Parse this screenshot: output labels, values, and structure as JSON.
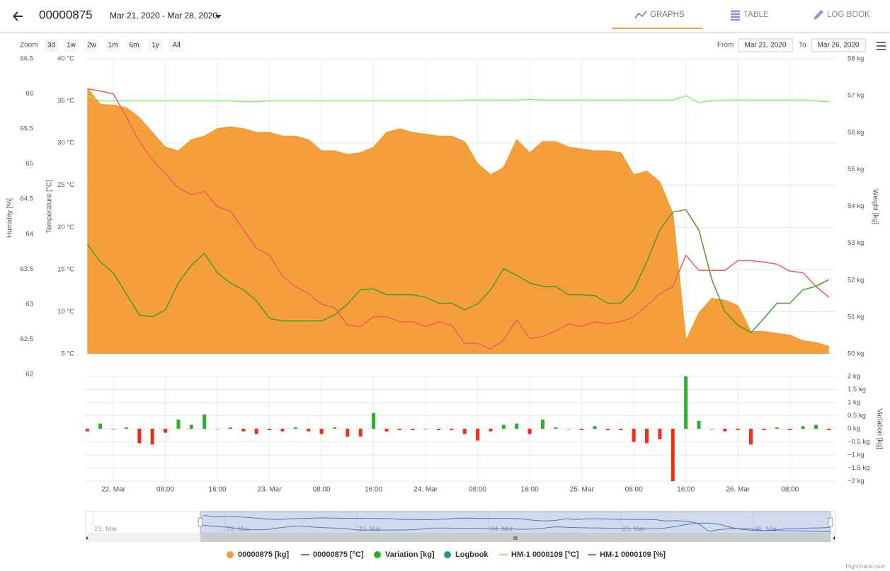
{
  "header": {
    "title": "00000875",
    "date_range": "Mar 21, 2020 - Mar 28, 2020",
    "tabs": [
      "GRAPHS",
      "TABLE",
      "LOG BOOK"
    ]
  },
  "toolbar": {
    "zoom_label": "Zoom",
    "zoom_buttons": [
      "3d",
      "1w",
      "2w",
      "1m",
      "6m",
      "1y",
      "All"
    ],
    "from_label": "From",
    "from_value": "Mar 21, 2020",
    "to_label": "To",
    "to_value": "Mar 26, 2020"
  },
  "chart_data": {
    "type": "line",
    "x": [
      "2020-03-21T20:00",
      "2020-03-21T22:00",
      "2020-03-22T00:00",
      "2020-03-22T02:00",
      "2020-03-22T04:00",
      "2020-03-22T06:00",
      "2020-03-22T08:00",
      "2020-03-22T10:00",
      "2020-03-22T12:00",
      "2020-03-22T14:00",
      "2020-03-22T16:00",
      "2020-03-22T18:00",
      "2020-03-22T20:00",
      "2020-03-22T22:00",
      "2020-03-23T00:00",
      "2020-03-23T02:00",
      "2020-03-23T04:00",
      "2020-03-23T06:00",
      "2020-03-23T08:00",
      "2020-03-23T10:00",
      "2020-03-23T12:00",
      "2020-03-23T14:00",
      "2020-03-23T16:00",
      "2020-03-23T18:00",
      "2020-03-23T20:00",
      "2020-03-23T22:00",
      "2020-03-24T00:00",
      "2020-03-24T02:00",
      "2020-03-24T04:00",
      "2020-03-24T06:00",
      "2020-03-24T08:00",
      "2020-03-24T10:00",
      "2020-03-24T12:00",
      "2020-03-24T14:00",
      "2020-03-24T16:00",
      "2020-03-24T18:00",
      "2020-03-24T20:00",
      "2020-03-24T22:00",
      "2020-03-25T00:00",
      "2020-03-25T02:00",
      "2020-03-25T04:00",
      "2020-03-25T06:00",
      "2020-03-25T08:00",
      "2020-03-25T10:00",
      "2020-03-25T12:00",
      "2020-03-25T14:00",
      "2020-03-25T16:00",
      "2020-03-25T18:00",
      "2020-03-25T20:00",
      "2020-03-25T22:00",
      "2020-03-26T00:00",
      "2020-03-26T02:00",
      "2020-03-26T04:00",
      "2020-03-26T06:00",
      "2020-03-26T08:00",
      "2020-03-26T10:00",
      "2020-03-26T12:00",
      "2020-03-26T14:00"
    ],
    "xlim": [
      "2020-03-21T19:45",
      "2020-03-26T15:00"
    ],
    "xticks": [
      {
        "value": "2020-03-22T00:00",
        "label": "22. Mar"
      },
      {
        "value": "2020-03-22T08:00",
        "label": "08:00"
      },
      {
        "value": "2020-03-22T16:00",
        "label": "16:00"
      },
      {
        "value": "2020-03-23T00:00",
        "label": "23. Mar"
      },
      {
        "value": "2020-03-23T08:00",
        "label": "08:00"
      },
      {
        "value": "2020-03-23T16:00",
        "label": "16:00"
      },
      {
        "value": "2020-03-24T00:00",
        "label": "24. Mar"
      },
      {
        "value": "2020-03-24T08:00",
        "label": "08:00"
      },
      {
        "value": "2020-03-24T16:00",
        "label": "16:00"
      },
      {
        "value": "2020-03-25T00:00",
        "label": "25. Mar"
      },
      {
        "value": "2020-03-25T08:00",
        "label": "08:00"
      },
      {
        "value": "2020-03-25T16:00",
        "label": "16:00"
      },
      {
        "value": "2020-03-26T00:00",
        "label": "26. Mar"
      },
      {
        "value": "2020-03-26T08:00",
        "label": "08:00"
      }
    ],
    "ylabel": "Temperature [°C]",
    "ylim": [
      5,
      40
    ],
    "yticks": [
      {
        "value": 5,
        "label": "5 °C"
      },
      {
        "value": 10,
        "label": "10 °C"
      },
      {
        "value": 15,
        "label": "15 °C"
      },
      {
        "value": 20,
        "label": "20 °C"
      },
      {
        "value": 25,
        "label": "25 °C"
      },
      {
        "value": 30,
        "label": "30 °C"
      },
      {
        "value": 35,
        "label": "35 °C"
      },
      {
        "value": 40,
        "label": "40 °C"
      }
    ],
    "y2label": "Weight [kg]",
    "y2lim": [
      50,
      58
    ],
    "y2ticks": [
      {
        "value": 50,
        "label": "50 kg"
      },
      {
        "value": 51,
        "label": "51 kg"
      },
      {
        "value": 52,
        "label": "52 kg"
      },
      {
        "value": 53,
        "label": "53 kg"
      },
      {
        "value": 54,
        "label": "54 kg"
      },
      {
        "value": 55,
        "label": "55 kg"
      },
      {
        "value": 56,
        "label": "56 kg"
      },
      {
        "value": 57,
        "label": "57 kg"
      },
      {
        "value": 58,
        "label": "58 kg"
      }
    ],
    "y3label": "Humidity [%]",
    "y3lim": [
      62,
      66.5
    ],
    "y3ticks": [
      62,
      62.5,
      63,
      63.5,
      64,
      64.5,
      65,
      65.5,
      66,
      66.5
    ],
    "y4label": "Variation [kg]",
    "y4lim": [
      -2,
      2
    ],
    "y4ticks": [
      {
        "value": -2,
        "label": "−2 kg"
      },
      {
        "value": -1.5,
        "label": "−1.5 kg"
      },
      {
        "value": -1,
        "label": "−1 kg"
      },
      {
        "value": -0.5,
        "label": "−0.5 kg"
      },
      {
        "value": 0,
        "label": "0 kg"
      },
      {
        "value": 0.5,
        "label": "0.5 kg"
      },
      {
        "value": 1,
        "label": "1 kg"
      },
      {
        "value": 1.5,
        "label": "1.5 kg"
      },
      {
        "value": 2,
        "label": "2 kg"
      }
    ],
    "grid": true,
    "series": [
      {
        "name": "00000875 [kg]",
        "type": "area",
        "axis": "y2",
        "color": "#f39a32",
        "values": [
          57.2,
          56.76,
          56.74,
          56.67,
          56.4,
          56.0,
          55.6,
          55.5,
          55.8,
          55.9,
          56.1,
          56.15,
          56.1,
          56.0,
          56.0,
          55.9,
          55.9,
          55.8,
          55.5,
          55.5,
          55.4,
          55.45,
          55.6,
          56.0,
          56.1,
          56.0,
          55.95,
          55.9,
          55.9,
          55.75,
          55.15,
          54.85,
          55.05,
          55.8,
          55.45,
          55.75,
          55.75,
          55.6,
          55.55,
          55.5,
          55.5,
          55.45,
          54.85,
          54.95,
          54.65,
          53.8,
          50.35,
          51.1,
          51.5,
          51.45,
          51.3,
          50.6,
          50.6,
          50.55,
          50.5,
          50.35,
          50.3,
          50.2
        ]
      },
      {
        "name": "00000875 [°C]",
        "type": "line",
        "axis": "y",
        "color": "#4c9a2a",
        "values": [
          18.0,
          15.9,
          14.6,
          12.1,
          9.6,
          9.4,
          10.2,
          13.4,
          15.5,
          16.9,
          14.6,
          13.4,
          12.6,
          11.3,
          9.2,
          8.9,
          8.9,
          8.9,
          8.9,
          9.6,
          10.9,
          12.6,
          12.7,
          12.0,
          12.0,
          12.0,
          11.7,
          11.0,
          11.0,
          10.2,
          10.9,
          12.6,
          15.1,
          14.3,
          13.4,
          13.0,
          13.0,
          12.0,
          12.0,
          11.9,
          11.0,
          11.0,
          12.6,
          15.9,
          19.7,
          21.8,
          22.1,
          19.7,
          13.8,
          10.0,
          8.4,
          7.5,
          9.2,
          11.0,
          11.0,
          12.6,
          13.0,
          13.8
        ]
      },
      {
        "name": "Variation [kg]",
        "type": "bar",
        "axis": "y4",
        "color": "#2ab02a",
        "negative_color": "#f42a1a",
        "values": [
          -0.1,
          0.2,
          0,
          0.05,
          -0.55,
          -0.6,
          -0.15,
          0.35,
          0.15,
          0.55,
          0,
          0.05,
          -0.1,
          -0.2,
          -0.05,
          -0.1,
          0.05,
          -0.1,
          -0.2,
          0.05,
          -0.3,
          -0.3,
          0.6,
          -0.1,
          -0.05,
          -0.05,
          0,
          -0.05,
          -0.05,
          -0.2,
          -0.45,
          -0.1,
          0.15,
          0.2,
          -0.2,
          0.35,
          0.05,
          0,
          -0.05,
          0.1,
          -0.05,
          -0.05,
          -0.5,
          -0.55,
          -0.4,
          -2.0,
          2.0,
          0.3,
          0,
          -0.1,
          -0.05,
          -0.6,
          -0.05,
          0.05,
          -0.05,
          0.1,
          0.15,
          -0.05
        ]
      },
      {
        "name": "HM-1 0000109 [°C]",
        "type": "line",
        "axis": "y",
        "color": "#90ee7e",
        "values": [
          35.6,
          35.0,
          35.0,
          35.0,
          35.0,
          35.0,
          35.0,
          35.0,
          35.0,
          35.0,
          35.0,
          35.0,
          34.9,
          34.9,
          35.0,
          35.0,
          35.0,
          35.0,
          35.0,
          35.0,
          35.0,
          35.0,
          35.0,
          35.0,
          35.0,
          35.0,
          35.0,
          35.0,
          35.0,
          35.1,
          35.1,
          35.1,
          35.1,
          35.1,
          35.2,
          35.1,
          35.1,
          35.1,
          35.1,
          35.1,
          35.1,
          35.1,
          35.1,
          35.1,
          35.1,
          35.1,
          35.6,
          34.8,
          35.0,
          35.1,
          35.1,
          35.1,
          35.1,
          35.1,
          35.1,
          35.1,
          35.0,
          34.9
        ]
      },
      {
        "name": "HM-1 0000109 [%]",
        "type": "line",
        "axis": "y3",
        "color": "#f45b5b",
        "values": [
          66.07,
          66.04,
          66.0,
          65.67,
          65.32,
          65.06,
          64.86,
          64.66,
          64.56,
          64.61,
          64.39,
          64.33,
          64.06,
          63.8,
          63.7,
          63.4,
          63.25,
          63.15,
          63.0,
          62.95,
          62.7,
          62.68,
          62.82,
          62.82,
          62.75,
          62.75,
          62.68,
          62.75,
          62.7,
          62.44,
          62.44,
          62.36,
          62.49,
          62.78,
          62.51,
          62.54,
          62.62,
          62.72,
          62.68,
          62.75,
          62.72,
          62.75,
          62.82,
          62.98,
          63.15,
          63.25,
          63.7,
          63.48,
          63.48,
          63.48,
          63.62,
          63.62,
          63.6,
          63.57,
          63.47,
          63.45,
          63.25,
          63.1
        ]
      }
    ]
  },
  "legend_extra": [
    {
      "name": "Logbook",
      "color": "#2b908f"
    }
  ],
  "navigator": {
    "xlim": [
      "2020-03-20T22:40",
      "2020-03-26T15:00"
    ],
    "xticks": [
      {
        "value": "2020-03-21T00:00",
        "label": "21. Mar"
      },
      {
        "value": "2020-03-22T00:00",
        "label": "22. Mar"
      },
      {
        "value": "2020-03-23T00:00",
        "label": "23. Mar"
      },
      {
        "value": "2020-03-24T00:00",
        "label": "24. Mar"
      },
      {
        "value": "2020-03-25T00:00",
        "label": "25. Mar"
      },
      {
        "value": "2020-03-26T00:00",
        "label": "26. Mar"
      }
    ]
  },
  "credits": "Highcharts.com"
}
